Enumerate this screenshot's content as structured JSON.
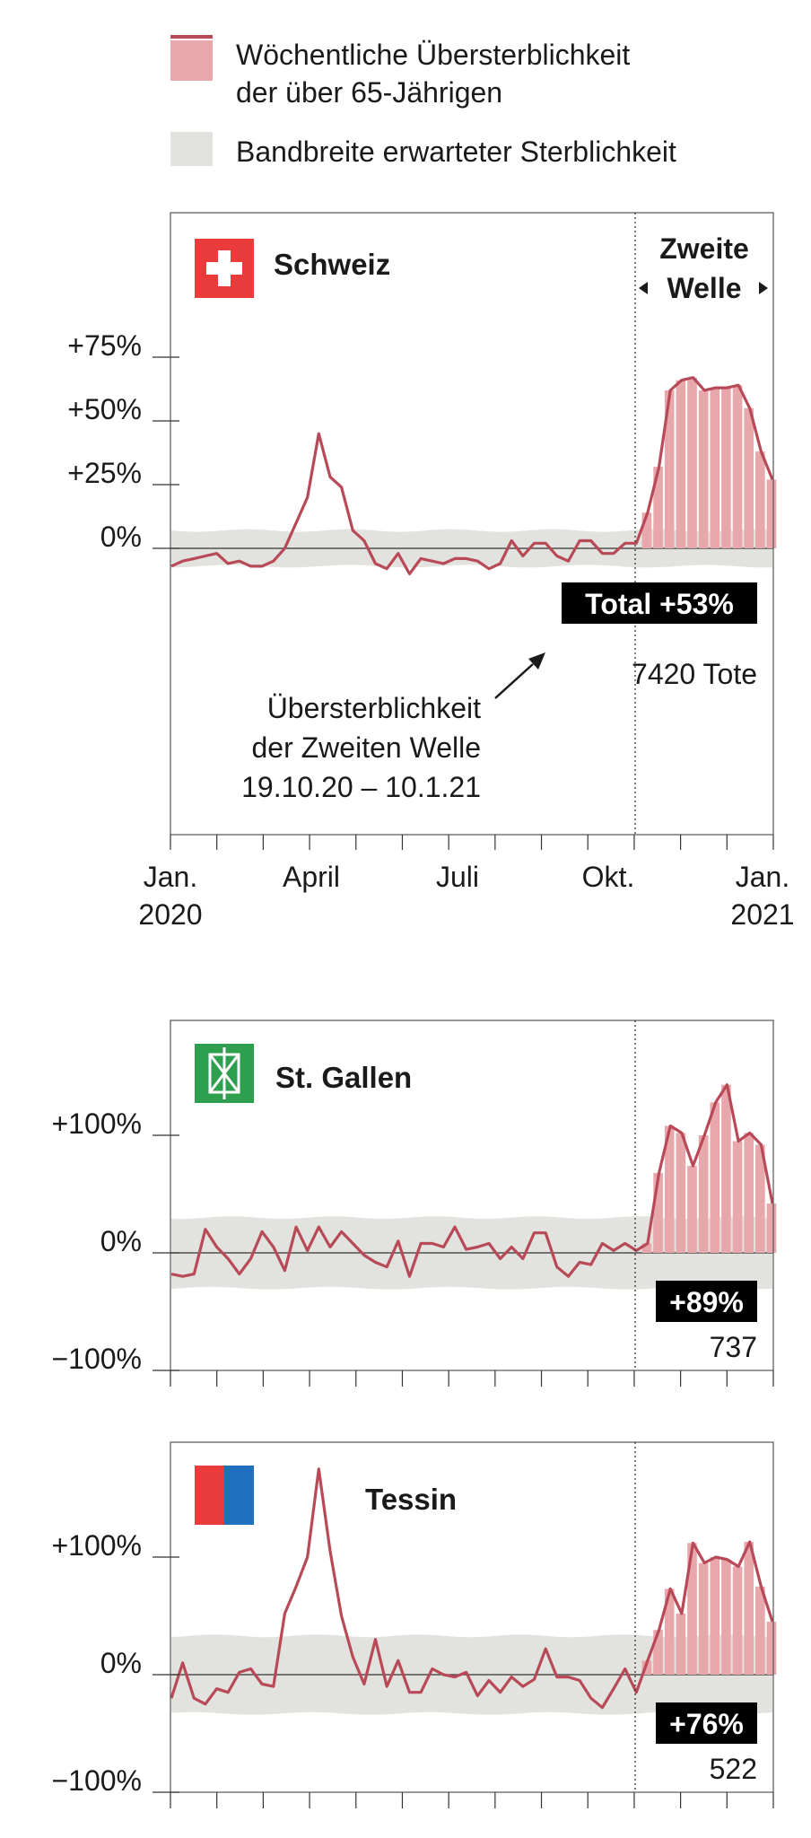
{
  "colors": {
    "line": "#b84a58",
    "bar": "#e8a7ab",
    "band": "#e2e2de",
    "frame": "#555555",
    "text": "#1a1a1a",
    "label_bg": "#000000",
    "swiss_red": "#ea3b3c",
    "stgallen_green": "#2e9e4f",
    "tessin_red": "#ea3b3c",
    "tessin_blue": "#1f6fbe"
  },
  "legend": {
    "excess_label_line1": "Wöchentliche Übersterblichkeit",
    "excess_label_line2": "der über 65-Jährigen",
    "band_label": "Bandbreite erwarteter Sterblichkeit"
  },
  "chart_data": [
    {
      "type": "line",
      "region": "Schweiz",
      "flag_icon": "swiss-flag-icon",
      "y_ticks": [
        "+75%",
        "+50%",
        "+25%",
        "0%"
      ],
      "y_tick_values": [
        75,
        50,
        25,
        0
      ],
      "ylim": [
        -112,
        133
      ],
      "x_tick_labels": [
        {
          "line1": "Jan.",
          "line2": "2020"
        },
        {
          "line1": "April",
          "line2": ""
        },
        {
          "line1": "Juli",
          "line2": ""
        },
        {
          "line1": "Okt.",
          "line2": ""
        },
        {
          "line1": "Jan.",
          "line2": "2021"
        }
      ],
      "second_wave_label_line1": "Zweite",
      "second_wave_label_line2": "Welle",
      "total_badge": "Total +53%",
      "deaths_label": "7420 Tote",
      "annotation_line1": "Übersterblichkeit",
      "annotation_line2": "der Zweiten Welle",
      "annotation_line3": "19.10.20 – 10.1.21",
      "band": {
        "upper": 7,
        "lower": -7
      },
      "values": [
        -7,
        -5,
        -4,
        -3,
        -2,
        -6,
        -5,
        -7,
        -7,
        -5,
        0,
        10,
        20,
        45,
        28,
        24,
        7,
        3,
        -6,
        -8,
        -2,
        -10,
        -4,
        -5,
        -6,
        -4,
        -4,
        -5,
        -8,
        -6,
        3,
        -3,
        2,
        2,
        -3,
        -5,
        3,
        3,
        -2,
        -2,
        2,
        2,
        14,
        32,
        62,
        66,
        67,
        62,
        63,
        63,
        64,
        55,
        38,
        27
      ],
      "second_wave_start_index": 42
    },
    {
      "type": "line",
      "region": "St. Gallen",
      "flag_icon": "stgallen-flag-icon",
      "y_ticks": [
        "+100%",
        "0%",
        "−100%"
      ],
      "y_tick_values": [
        100,
        0,
        -100
      ],
      "ylim": [
        -100,
        200
      ],
      "badge": "+89%",
      "deaths_label": "737",
      "band": {
        "upper": 30,
        "lower": -30
      },
      "values": [
        -18,
        -20,
        -18,
        20,
        5,
        -5,
        -18,
        -5,
        18,
        5,
        -15,
        22,
        2,
        22,
        5,
        18,
        8,
        -2,
        -8,
        -12,
        10,
        -20,
        8,
        8,
        5,
        22,
        3,
        5,
        8,
        -5,
        5,
        -5,
        17,
        17,
        -12,
        -20,
        -8,
        -10,
        8,
        2,
        8,
        2,
        8,
        68,
        108,
        102,
        74,
        100,
        128,
        143,
        95,
        102,
        92,
        42
      ],
      "second_wave_start_index": 42
    },
    {
      "type": "line",
      "region": "Tessin",
      "flag_icon": "tessin-flag-icon",
      "y_ticks": [
        "+100%",
        "0%",
        "−100%"
      ],
      "y_tick_values": [
        100,
        0,
        -100
      ],
      "ylim": [
        -100,
        200
      ],
      "badge": "+76%",
      "deaths_label": "522",
      "band": {
        "upper": 33,
        "lower": -33
      },
      "values": [
        -20,
        10,
        -20,
        -25,
        -12,
        -15,
        2,
        5,
        -8,
        -10,
        52,
        75,
        100,
        175,
        105,
        50,
        15,
        -8,
        30,
        -10,
        12,
        -15,
        -15,
        5,
        0,
        -2,
        2,
        -18,
        -5,
        -15,
        -2,
        -10,
        -4,
        22,
        -2,
        -2,
        -5,
        -20,
        -28,
        -12,
        5,
        -15,
        12,
        38,
        73,
        52,
        112,
        95,
        100,
        98,
        92,
        113,
        75,
        45
      ],
      "second_wave_start_index": 42
    }
  ]
}
